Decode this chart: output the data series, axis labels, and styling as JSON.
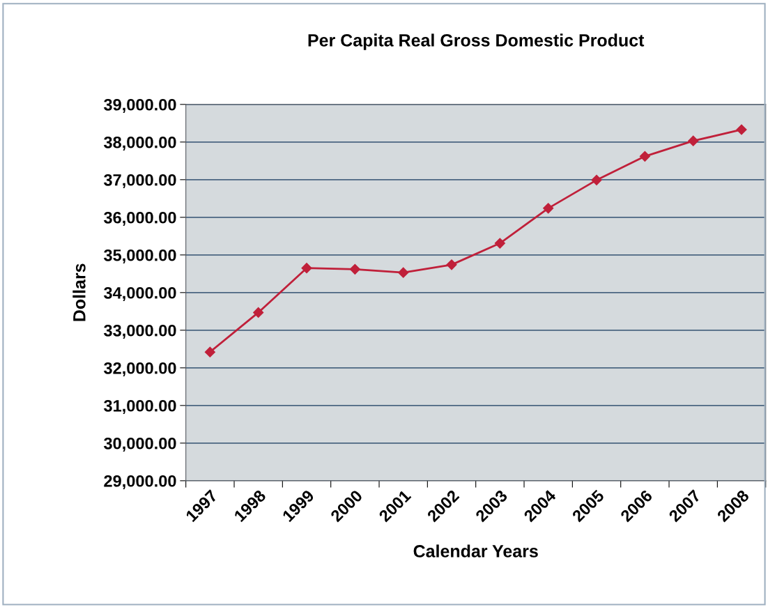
{
  "chart_data": {
    "type": "line",
    "title": "Per Capita Real Gross Domestic Product",
    "xlabel": "Calendar Years",
    "ylabel": "Dollars",
    "categories": [
      "1997",
      "1998",
      "1999",
      "2000",
      "2001",
      "2002",
      "2003",
      "2004",
      "2005",
      "2006",
      "2007",
      "2008"
    ],
    "series": [
      {
        "color": "#c0203a",
        "values": [
          32420,
          33470,
          34650,
          34620,
          34530,
          34740,
          35310,
          36240,
          36990,
          37620,
          38030,
          38330
        ]
      }
    ],
    "ylim": [
      29000,
      39000
    ],
    "yticks": [
      {
        "value": 29000,
        "label": "29,000.00"
      },
      {
        "value": 30000,
        "label": "30,000.00"
      },
      {
        "value": 31000,
        "label": "31,000.00"
      },
      {
        "value": 32000,
        "label": "32,000.00"
      },
      {
        "value": 33000,
        "label": "33,000.00"
      },
      {
        "value": 34000,
        "label": "34,000.00"
      },
      {
        "value": 35000,
        "label": "35,000.00"
      },
      {
        "value": 36000,
        "label": "36,000.00"
      },
      {
        "value": 37000,
        "label": "37,000.00"
      },
      {
        "value": 38000,
        "label": "38,000.00"
      },
      {
        "value": 39000,
        "label": "39,000.00"
      }
    ],
    "grid": "y",
    "marker": "diamond",
    "line_style": "solid"
  }
}
